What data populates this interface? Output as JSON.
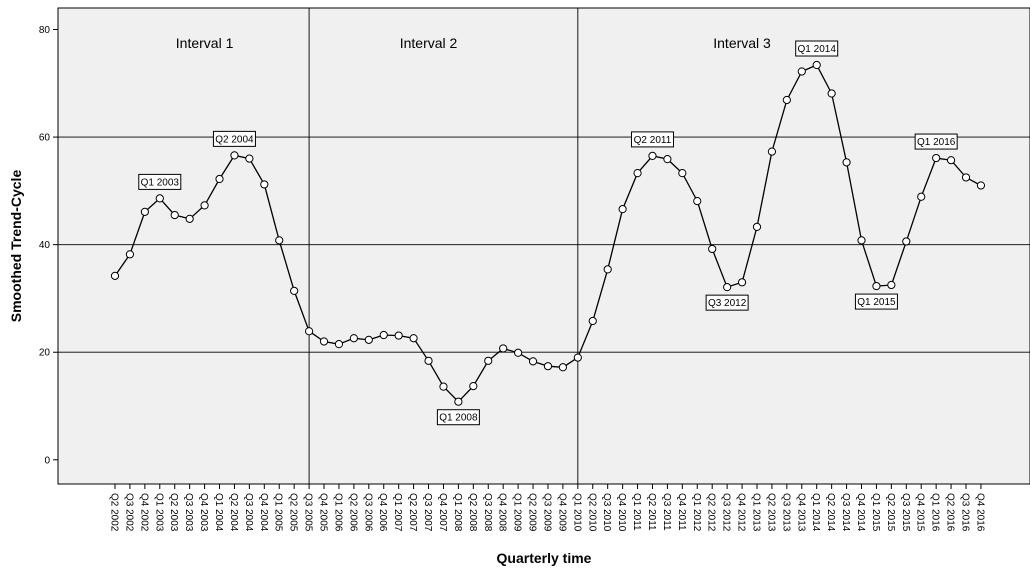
{
  "chart_data": {
    "type": "line",
    "xlabel": "Quarterly time",
    "ylabel": "Smoothed Trend-Cycle",
    "ylim": [
      -4.5,
      84
    ],
    "yticks": [
      0,
      20,
      40,
      60,
      80
    ],
    "grid": "horizontal lines at 20, 40, 60",
    "colors": {
      "line": "#000000",
      "marker_fill": "#ffffff",
      "plot_background": "#f0f0f0",
      "grid": "#000000"
    },
    "categories": [
      "Q2 2002",
      "Q3 2002",
      "Q4 2002",
      "Q1 2003",
      "Q2 2003",
      "Q3 2003",
      "Q4 2003",
      "Q1 2004",
      "Q2 2004",
      "Q3 2004",
      "Q4 2004",
      "Q1 2005",
      "Q2 2005",
      "Q3 2005",
      "Q4 2005",
      "Q1 2006",
      "Q2 2006",
      "Q3 2006",
      "Q4 2006",
      "Q1 2007",
      "Q2 2007",
      "Q3 2007",
      "Q4 2007",
      "Q1 2008",
      "Q2 2008",
      "Q3 2008",
      "Q4 2008",
      "Q1 2009",
      "Q2 2009",
      "Q3 2009",
      "Q4 2009",
      "Q1 2010",
      "Q2 2010",
      "Q3 2010",
      "Q4 2010",
      "Q1 2011",
      "Q2 2011",
      "Q3 2011",
      "Q4 2011",
      "Q1 2012",
      "Q2 2012",
      "Q3 2012",
      "Q4 2012",
      "Q1 2013",
      "Q2 2013",
      "Q3 2013",
      "Q4 2013",
      "Q1 2014",
      "Q2 2014",
      "Q3 2014",
      "Q4 2014",
      "Q1 2015",
      "Q2 2015",
      "Q3 2015",
      "Q4 2015",
      "Q1 2016",
      "Q2 2016",
      "Q3 2016",
      "Q4 2016"
    ],
    "series": [
      {
        "values": [
          34.2,
          38.2,
          46.1,
          48.6,
          45.5,
          44.8,
          47.3,
          52.2,
          56.6,
          56.0,
          51.2,
          40.8,
          31.4,
          23.9,
          22.0,
          21.5,
          22.6,
          22.3,
          23.2,
          23.1,
          22.6,
          18.4,
          13.6,
          10.8,
          13.7,
          18.4,
          20.7,
          19.9,
          18.3,
          17.4,
          17.2,
          19.0,
          25.8,
          35.4,
          46.6,
          53.3,
          56.5,
          55.9,
          53.3,
          48.1,
          39.2,
          32.1,
          33.0,
          43.3,
          57.3,
          66.9,
          72.2,
          73.4,
          68.1,
          55.3,
          40.8,
          32.3,
          32.5,
          40.6,
          48.9,
          56.1,
          55.7,
          52.5,
          51.0
        ]
      }
    ],
    "interval_boundaries": [
      "Q3 2005",
      "Q1 2010"
    ],
    "interval_labels": [
      {
        "text": "Interval 1",
        "at": "Q4 2003"
      },
      {
        "text": "Interval 2",
        "at": "Q3 2007"
      },
      {
        "text": "Interval 3",
        "at": "Q4 2012"
      }
    ],
    "annotations": [
      {
        "text": "Q1 2003",
        "category": "Q1 2003",
        "value": 48.6,
        "side": "above"
      },
      {
        "text": "Q2 2004",
        "category": "Q2 2004",
        "value": 56.6,
        "side": "above"
      },
      {
        "text": "Q1 2008",
        "category": "Q1 2008",
        "value": 10.8,
        "side": "below"
      },
      {
        "text": "Q2 2011",
        "category": "Q2 2011",
        "value": 56.5,
        "side": "above"
      },
      {
        "text": "Q3 2012",
        "category": "Q3 2012",
        "value": 32.1,
        "side": "below"
      },
      {
        "text": "Q1 2014",
        "category": "Q1 2014",
        "value": 73.4,
        "side": "above"
      },
      {
        "text": "Q1 2015",
        "category": "Q1 2015",
        "value": 32.3,
        "side": "below"
      },
      {
        "text": "Q1 2016",
        "category": "Q1 2016",
        "value": 56.1,
        "side": "above"
      }
    ]
  }
}
